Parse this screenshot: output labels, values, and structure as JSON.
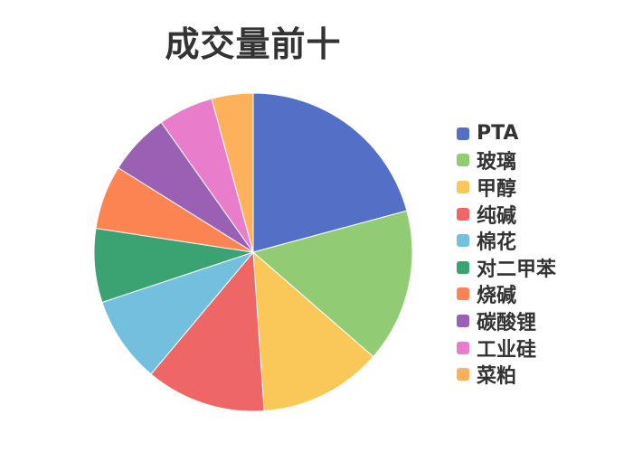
{
  "chart_data": {
    "type": "pie",
    "title": "成交量前十",
    "legend_position": "right",
    "slices": [
      {
        "label": "PTA",
        "value": 20.8,
        "color": "#5470c6"
      },
      {
        "label": "玻璃",
        "value": 15.6,
        "color": "#91cc75"
      },
      {
        "label": "甲醇",
        "value": 12.5,
        "color": "#fac858"
      },
      {
        "label": "纯碱",
        "value": 12.2,
        "color": "#ee6666"
      },
      {
        "label": "棉花",
        "value": 8.8,
        "color": "#73c0de"
      },
      {
        "label": "对二甲苯",
        "value": 7.5,
        "color": "#3ba272"
      },
      {
        "label": "烧碱",
        "value": 6.5,
        "color": "#fc8452"
      },
      {
        "label": "碳酸锂",
        "value": 6.3,
        "color": "#9a60b4"
      },
      {
        "label": "工业硅",
        "value": 5.6,
        "color": "#ea7ccc"
      },
      {
        "label": "菜粕",
        "value": 4.2,
        "color": "#fdb15a"
      }
    ]
  }
}
